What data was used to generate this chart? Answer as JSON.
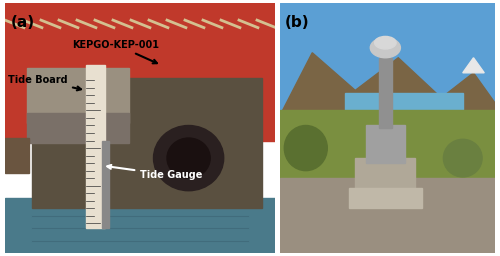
{
  "fig_width": 5.0,
  "fig_height": 2.56,
  "dpi": 100,
  "panel_a_label": "(a)",
  "panel_b_label": "(b)",
  "annotation_kepgo": "KEPGO-KEP-001",
  "annotation_tide_board": "Tide Board",
  "annotation_tide_gauge": "Tide Gauge",
  "panel_a_bg_top": "#c8392b",
  "panel_a_bg_bottom": "#7a5c3a",
  "panel_b_bg_sky": "#5b9fd4",
  "panel_b_bg_mountain": "#8b7355",
  "panel_b_bg_grass": "#6b8c3a",
  "border_color": "white",
  "label_color_a": "black",
  "label_color_b": "black",
  "arrow_color_black": "black",
  "arrow_color_white": "white"
}
